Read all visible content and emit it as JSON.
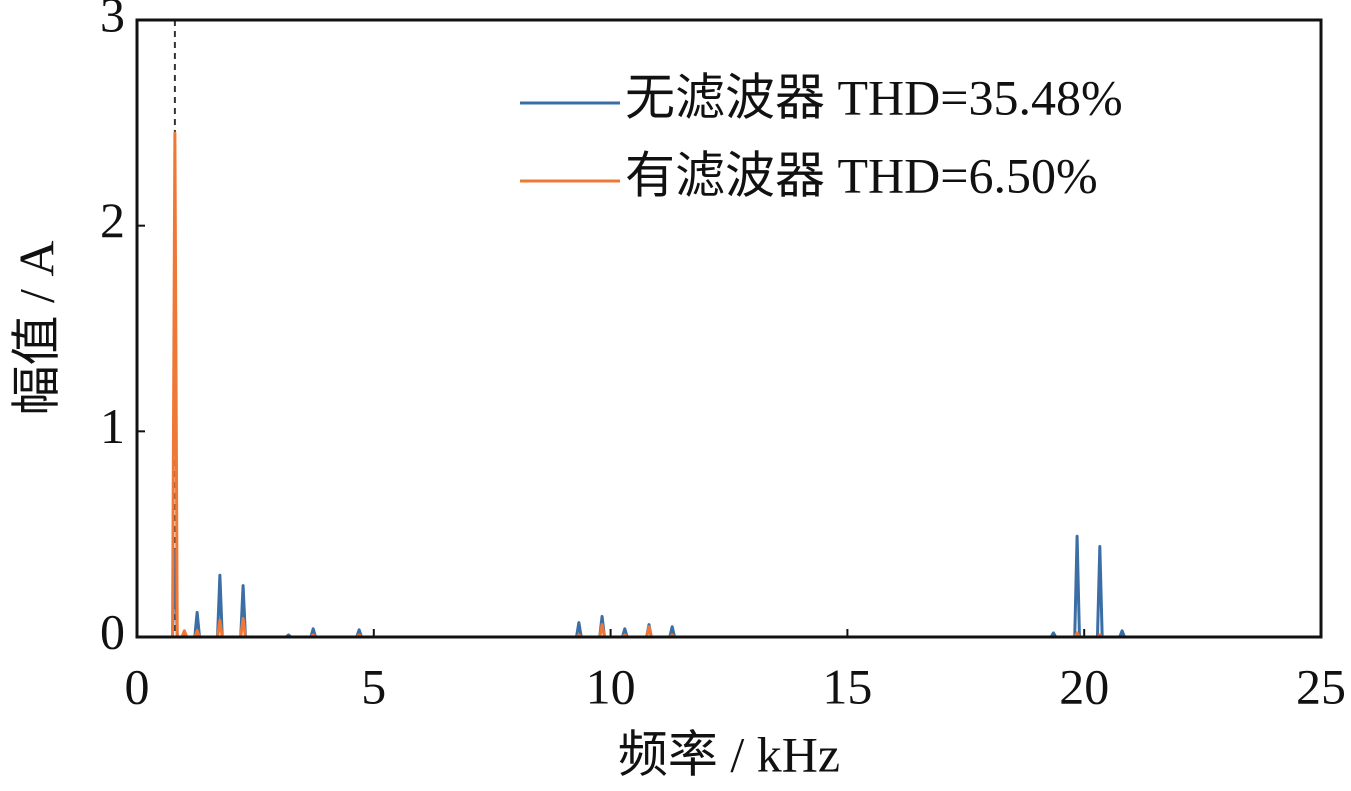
{
  "chart_data": {
    "type": "line",
    "x_label": "频率 / kHz",
    "y_label": "幅值 / A",
    "x": [
      0,
      0.75,
      0.8,
      0.85,
      0.95,
      1.0,
      1.05,
      1.22,
      1.27,
      1.32,
      1.7,
      1.75,
      1.8,
      2.19,
      2.24,
      2.29,
      3.15,
      3.2,
      3.25,
      3.67,
      3.72,
      3.77,
      4.64,
      4.69,
      4.74,
      9.28,
      9.33,
      9.38,
      9.77,
      9.82,
      9.87,
      10.25,
      10.3,
      10.35,
      10.76,
      10.81,
      10.86,
      11.25,
      11.3,
      11.35,
      19.3,
      19.35,
      19.4,
      19.8,
      19.85,
      19.9,
      20.28,
      20.33,
      20.38,
      20.75,
      20.8,
      20.85,
      25
    ],
    "series": [
      {
        "name": "无滤波器 THD=35.48%",
        "color": "#3b6ea5",
        "values": [
          0,
          0,
          0.42,
          0,
          0,
          0.02,
          0,
          0,
          0.12,
          0,
          0,
          0.3,
          0,
          0,
          0.25,
          0,
          0,
          0.01,
          0,
          0,
          0.04,
          0,
          0,
          0.035,
          0,
          0,
          0.07,
          0,
          0,
          0.1,
          0,
          0,
          0.04,
          0,
          0,
          0.06,
          0,
          0,
          0.05,
          0,
          0,
          0.02,
          0,
          0,
          0.49,
          0,
          0,
          0.44,
          0,
          0,
          0.03,
          0,
          0
        ]
      },
      {
        "name": "有滤波器 THD=6.50%",
        "color": "#f07836",
        "values": [
          0,
          0,
          2.45,
          0,
          0,
          0.03,
          0,
          0,
          0.03,
          0,
          0,
          0.08,
          0,
          0,
          0.09,
          0,
          0,
          0,
          0,
          0,
          0.01,
          0,
          0,
          0.01,
          0,
          0,
          0.01,
          0,
          0,
          0.06,
          0,
          0,
          0.01,
          0,
          0,
          0.05,
          0,
          0,
          0.01,
          0,
          0,
          0,
          0,
          0,
          0.02,
          0,
          0,
          0.01,
          0,
          0,
          0,
          0,
          0
        ]
      }
    ],
    "xlim": [
      0,
      25
    ],
    "xticks": [
      0,
      5,
      10,
      15,
      20,
      25
    ],
    "ylim": [
      0,
      3
    ],
    "yticks": [
      0,
      1,
      2,
      3
    ],
    "legend": "upper right"
  }
}
